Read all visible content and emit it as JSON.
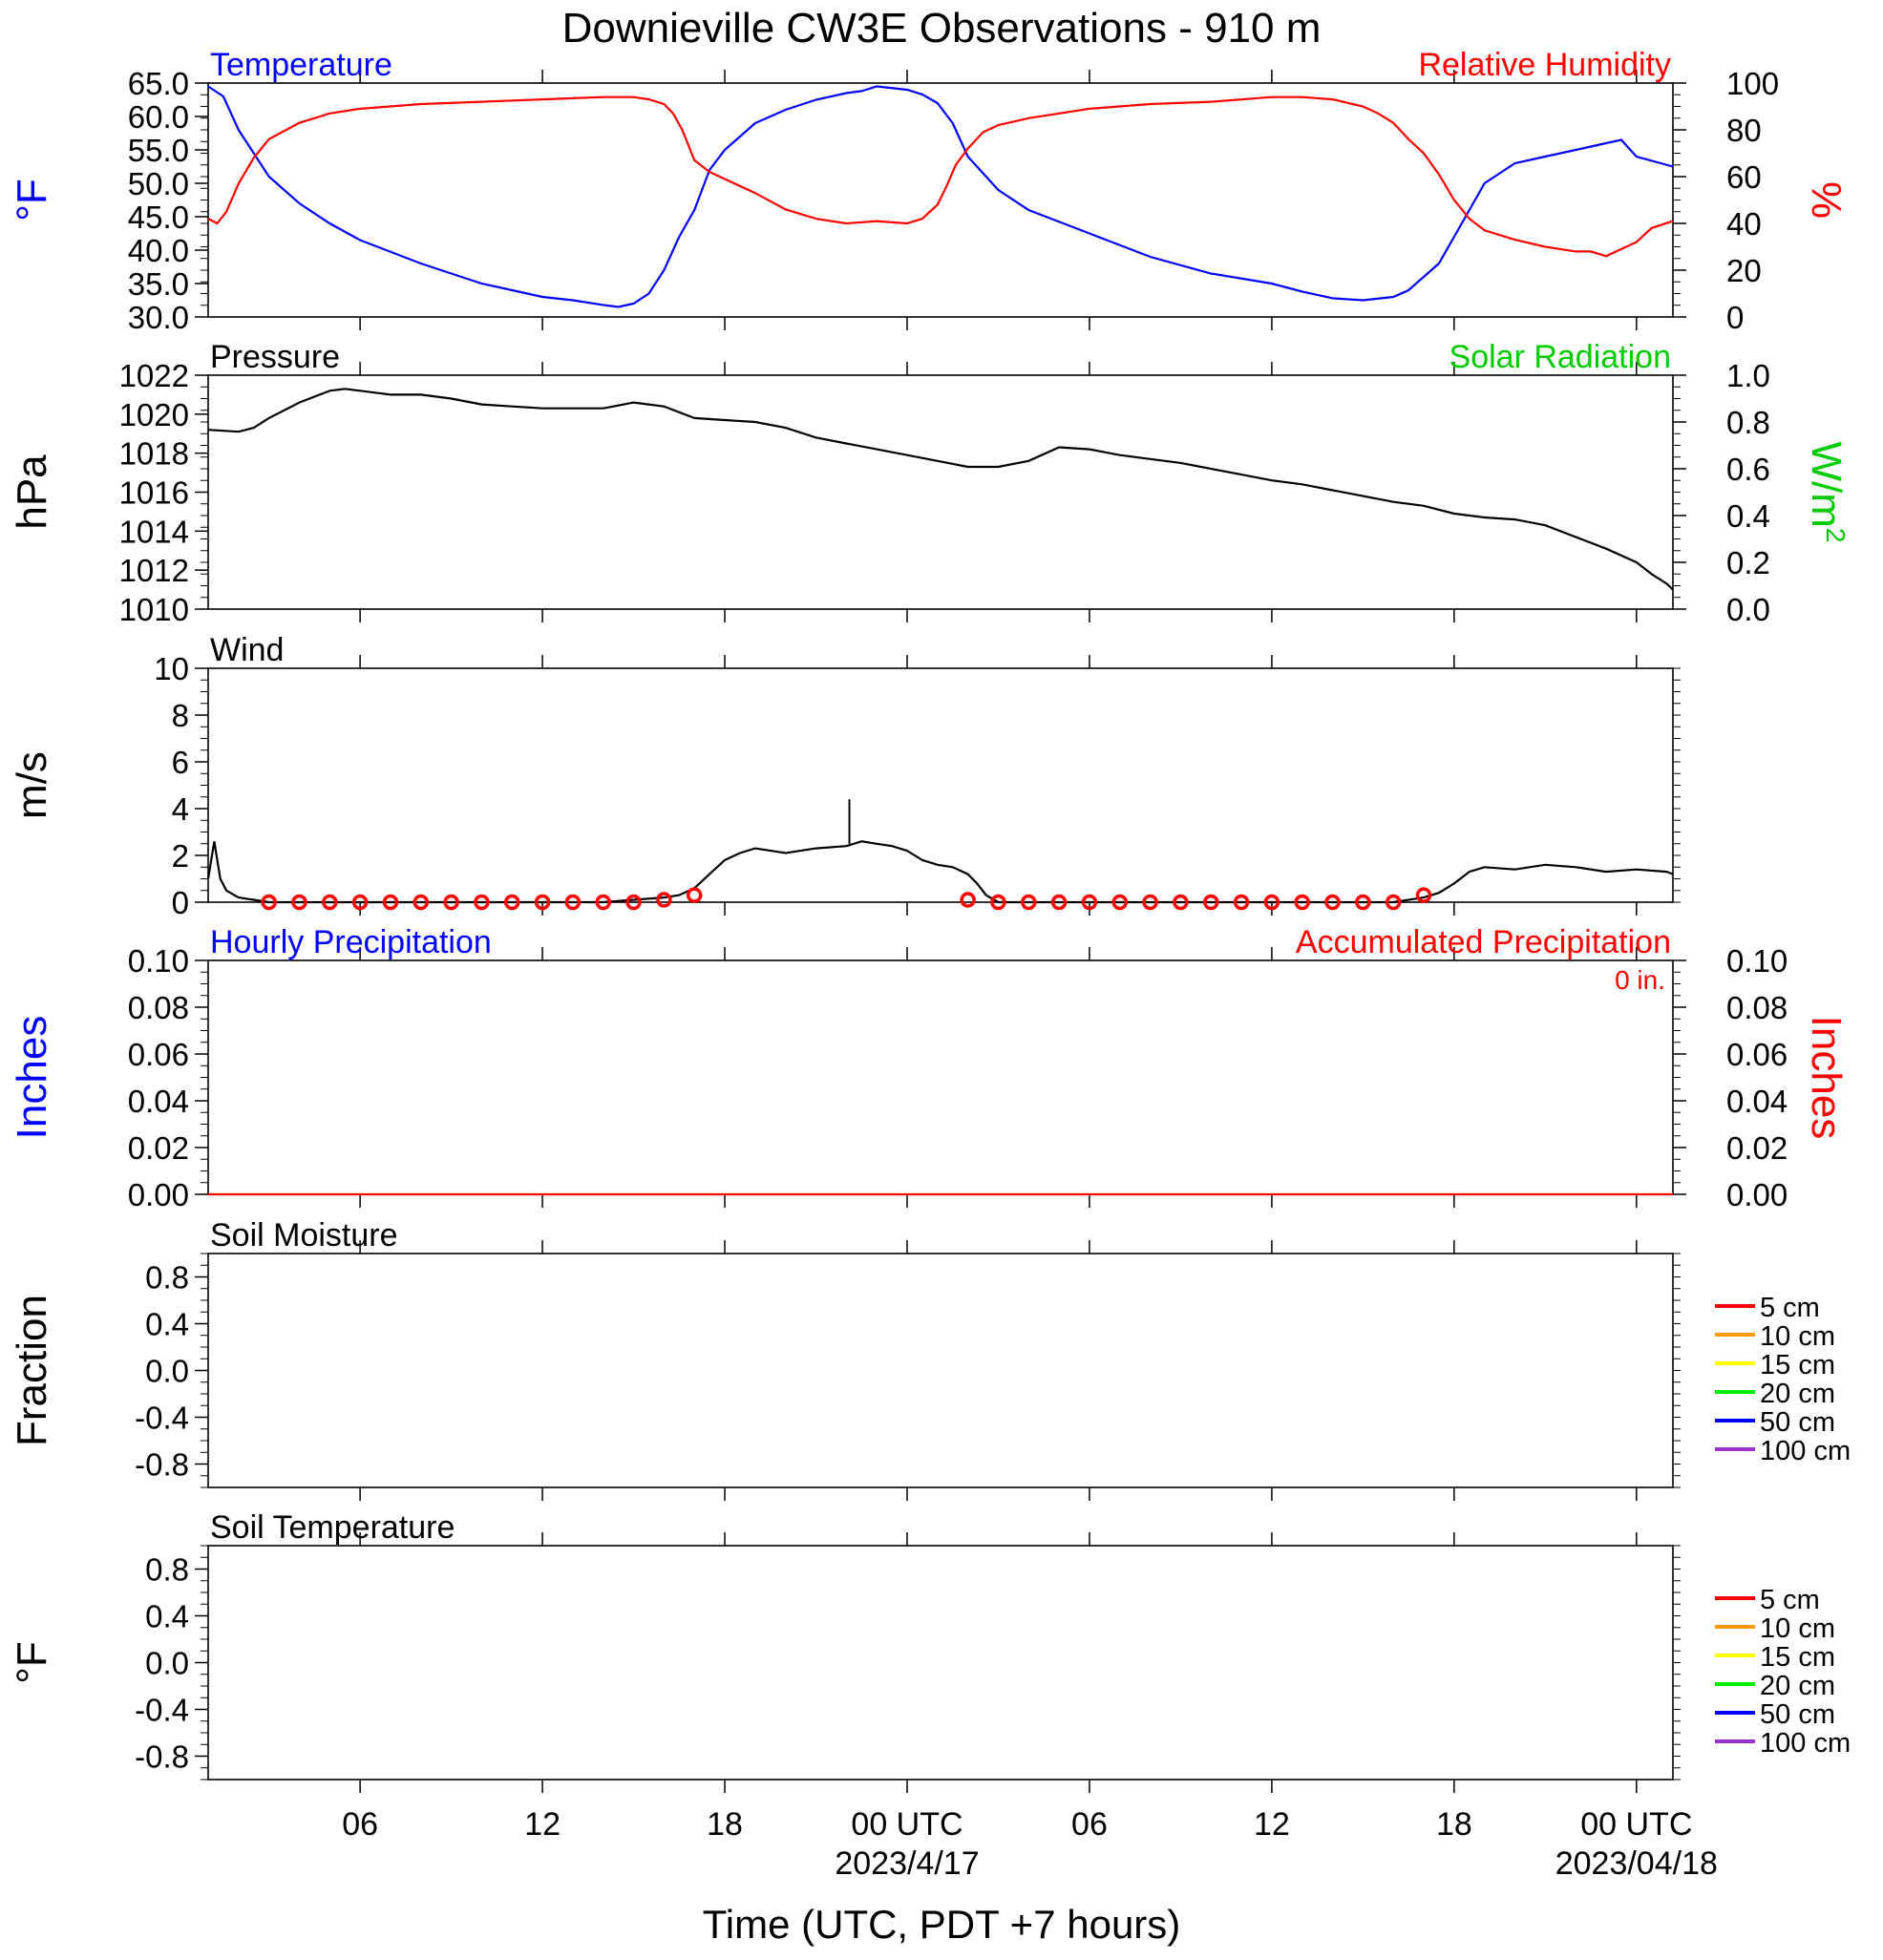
{
  "title": "Downieville CW3E Observations - 910 m",
  "xlabel": "Time (UTC, PDT +7 hours)",
  "x_ticks": [
    {
      "label": "06",
      "hour": 6
    },
    {
      "label": "12",
      "hour": 12
    },
    {
      "label": "18",
      "hour": 18
    },
    {
      "label": "00 UTC",
      "hour": 24,
      "date": "2023/4/17"
    },
    {
      "label": "06",
      "hour": 30
    },
    {
      "label": "12",
      "hour": 36
    },
    {
      "label": "18",
      "hour": 42
    },
    {
      "label": "00 UTC",
      "hour": 48,
      "date": "2023/04/18"
    }
  ],
  "x_range_hours": [
    1,
    49.2
  ],
  "colors": {
    "temperature": "#0000ff",
    "humidity": "#ff0000",
    "solar": "#00cc00",
    "black": "#000000"
  },
  "chart_data": [
    {
      "type": "line",
      "panel": "temperature-humidity",
      "title_left": "Temperature",
      "title_right": "Relative Humidity",
      "ylabel_left": "°F",
      "ylabel_right": "%",
      "ylim_left": [
        30,
        65
      ],
      "ylim_right": [
        0,
        100
      ],
      "yticks_left": [
        "30.0",
        "35.0",
        "40.0",
        "45.0",
        "50.0",
        "55.0",
        "60.0",
        "65.0"
      ],
      "yticks_right": [
        "0",
        "20",
        "40",
        "60",
        "80",
        "100"
      ],
      "series": [
        {
          "name": "Temperature",
          "axis": "left",
          "color": "#0000ff",
          "x": [
            1,
            1.5,
            2,
            3,
            4,
            5,
            6,
            8,
            10,
            12,
            13,
            14,
            14.5,
            15,
            15.5,
            16,
            16.5,
            17,
            17.5,
            18,
            18.5,
            19,
            20,
            21,
            22,
            22.5,
            23,
            24,
            24.5,
            25,
            25.5,
            26,
            27,
            28,
            30,
            32,
            34,
            36,
            37,
            38,
            39,
            40,
            40.5,
            41,
            41.5,
            42,
            42.5,
            43,
            44,
            45,
            46,
            46.5,
            47,
            47.5,
            48,
            49.2
          ],
          "y": [
            64.5,
            63,
            58,
            51,
            47,
            44,
            41.5,
            38,
            35,
            33,
            32.5,
            31.8,
            31.5,
            32,
            33.5,
            37,
            42,
            46,
            52,
            55,
            57,
            59,
            61,
            62.5,
            63.5,
            63.8,
            64.5,
            64,
            63.3,
            62,
            59,
            54,
            49,
            46,
            42.5,
            39,
            36.5,
            35,
            33.8,
            32.8,
            32.5,
            33,
            34,
            36,
            38,
            42,
            46,
            50,
            53,
            54,
            55,
            55.5,
            56,
            56.5,
            54,
            52.5
          ]
        },
        {
          "name": "Relative Humidity",
          "axis": "right",
          "color": "#ff0000",
          "x": [
            1,
            1.3,
            1.6,
            2,
            2.5,
            3,
            4,
            5,
            6,
            8,
            10,
            12,
            13,
            14,
            15,
            15.5,
            16,
            16.3,
            16.6,
            17,
            17.5,
            18,
            19,
            20,
            21,
            22,
            23,
            24,
            24.5,
            25,
            25.3,
            25.6,
            26,
            26.5,
            27,
            28,
            30,
            32,
            34,
            36,
            37,
            38,
            39,
            39.5,
            40,
            40.5,
            41,
            41.5,
            42,
            42.5,
            43,
            44,
            45,
            46,
            46.5,
            47,
            47.5,
            48,
            48.5,
            49.2
          ],
          "y": [
            42,
            40,
            45,
            57,
            68,
            76,
            83,
            87,
            89,
            91,
            92,
            93,
            93.5,
            94,
            94,
            93,
            91,
            87,
            80,
            67,
            62,
            59,
            53,
            46,
            42,
            40,
            41,
            40,
            42,
            48,
            56,
            65,
            72,
            79,
            82,
            85,
            89,
            91,
            92,
            94,
            94,
            93,
            90,
            87,
            83,
            76,
            70,
            61,
            50,
            42,
            37,
            33,
            30,
            28,
            28,
            26,
            29,
            32,
            38,
            41
          ]
        }
      ]
    },
    {
      "type": "line",
      "panel": "pressure-solar",
      "title_left": "Pressure",
      "title_right": "Solar Radiation",
      "ylabel_left": "hPa",
      "ylabel_right": "W/m",
      "ylabel_right_sup": "2",
      "ylim_left": [
        1010,
        1022
      ],
      "ylim_right": [
        0,
        1
      ],
      "yticks_left": [
        "1010",
        "1012",
        "1014",
        "1016",
        "1018",
        "1020",
        "1022"
      ],
      "yticks_right": [
        "0.0",
        "0.2",
        "0.4",
        "0.6",
        "0.8",
        "1.0"
      ],
      "series": [
        {
          "name": "Pressure",
          "axis": "left",
          "color": "#000000",
          "x": [
            1,
            2,
            2.5,
            3,
            4,
            5,
            5.5,
            6,
            7,
            8,
            9,
            10,
            11,
            12,
            13,
            14,
            15,
            16,
            17,
            18,
            19,
            20,
            21,
            22,
            23,
            24,
            25,
            26,
            27,
            28,
            29,
            30,
            31,
            32,
            33,
            34,
            35,
            36,
            37,
            38,
            39,
            40,
            41,
            42,
            43,
            44,
            45,
            46,
            47,
            48,
            48.5,
            49,
            49.2
          ],
          "y": [
            1019.2,
            1019.1,
            1019.3,
            1019.8,
            1020.6,
            1021.2,
            1021.3,
            1021.2,
            1021.0,
            1021.0,
            1020.8,
            1020.5,
            1020.4,
            1020.3,
            1020.3,
            1020.3,
            1020.6,
            1020.4,
            1019.8,
            1019.7,
            1019.6,
            1019.3,
            1018.8,
            1018.5,
            1018.2,
            1017.9,
            1017.6,
            1017.3,
            1017.3,
            1017.6,
            1018.3,
            1018.2,
            1017.9,
            1017.7,
            1017.5,
            1017.2,
            1016.9,
            1016.6,
            1016.4,
            1016.1,
            1015.8,
            1015.5,
            1015.3,
            1014.9,
            1014.7,
            1014.6,
            1014.3,
            1013.7,
            1013.1,
            1012.4,
            1011.8,
            1011.3,
            1011.0
          ]
        },
        {
          "name": "Solar Radiation",
          "axis": "right",
          "color": "#00cc00",
          "x": [],
          "y": []
        }
      ]
    },
    {
      "type": "line",
      "panel": "wind",
      "title_left": "Wind",
      "ylabel_left": "m/s",
      "ylim_left": [
        0,
        10
      ],
      "yticks_left": [
        "0",
        "2",
        "4",
        "6",
        "8",
        "10"
      ],
      "series": [
        {
          "name": "Wind",
          "axis": "left",
          "color": "#000000",
          "x": [
            1,
            1.2,
            1.4,
            1.6,
            2,
            3,
            14,
            15,
            16,
            16.5,
            17,
            17.5,
            18,
            18.5,
            19,
            20,
            21,
            22,
            22.5,
            23,
            23.5,
            24,
            24.5,
            25,
            25.5,
            26,
            26.3,
            26.6,
            27,
            28,
            40,
            41,
            41.5,
            42,
            42.5,
            43,
            44,
            45,
            46,
            47,
            48,
            49,
            49.2
          ],
          "y": [
            1.0,
            2.6,
            1.0,
            0.5,
            0.2,
            0,
            0,
            0.1,
            0.2,
            0.3,
            0.6,
            1.2,
            1.8,
            2.1,
            2.3,
            2.1,
            2.3,
            2.4,
            2.6,
            2.5,
            2.4,
            2.2,
            1.8,
            1.6,
            1.5,
            1.2,
            0.8,
            0.3,
            0,
            0,
            0,
            0.2,
            0.4,
            0.8,
            1.3,
            1.5,
            1.4,
            1.6,
            1.5,
            1.3,
            1.4,
            1.3,
            1.2
          ],
          "gust_peak": {
            "x": 22.1,
            "y": 4.4
          }
        },
        {
          "name": "Wind barbs",
          "axis": "left",
          "color": "#ff0000",
          "marker": "circle",
          "x": [
            3,
            4,
            5,
            6,
            7,
            8,
            9,
            10,
            11,
            12,
            13,
            14,
            15,
            16,
            17,
            26,
            27,
            28,
            29,
            30,
            31,
            32,
            33,
            34,
            35,
            36,
            37,
            38,
            39,
            40,
            41
          ],
          "y": [
            0,
            0,
            0,
            0,
            0,
            0,
            0,
            0,
            0,
            0,
            0,
            0,
            0,
            0.1,
            0.3,
            0.1,
            0,
            0,
            0,
            0,
            0,
            0,
            0,
            0,
            0,
            0,
            0,
            0,
            0,
            0,
            0.3
          ]
        }
      ]
    },
    {
      "type": "line",
      "panel": "precipitation",
      "title_left": "Hourly Precipitation",
      "title_right": "Accumulated Precipitation",
      "annotation": "0 in.",
      "ylabel_left": "Inches",
      "ylabel_right": "Inches",
      "ylim_left": [
        0,
        0.1
      ],
      "ylim_right": [
        0,
        0.1
      ],
      "yticks_left": [
        "0.00",
        "0.02",
        "0.04",
        "0.06",
        "0.08",
        "0.10"
      ],
      "yticks_right": [
        "0.00",
        "0.02",
        "0.04",
        "0.06",
        "0.08",
        "0.10"
      ],
      "series": [
        {
          "name": "Accumulated Precipitation",
          "axis": "right",
          "color": "#ff0000",
          "x": [
            1,
            49.2
          ],
          "y": [
            0,
            0
          ]
        }
      ]
    },
    {
      "type": "line",
      "panel": "soil-moisture",
      "title_left": "Soil Moisture",
      "ylabel_left": "Fraction",
      "ylim_left": [
        -1,
        1
      ],
      "yticks_left": [
        "-0.8",
        "-0.4",
        "0.0",
        "0.4",
        "0.8"
      ],
      "legend": [
        {
          "label": "5 cm",
          "color": "#ff0000"
        },
        {
          "label": "10 cm",
          "color": "#ff9900"
        },
        {
          "label": "15 cm",
          "color": "#ffff00"
        },
        {
          "label": "20 cm",
          "color": "#00ee00"
        },
        {
          "label": "50 cm",
          "color": "#0000ff"
        },
        {
          "label": "100 cm",
          "color": "#9933cc"
        }
      ],
      "series": []
    },
    {
      "type": "line",
      "panel": "soil-temperature",
      "title_left": "Soil Temperature",
      "ylabel_left": "°F",
      "ylim_left": [
        -1,
        1
      ],
      "yticks_left": [
        "-0.8",
        "-0.4",
        "0.0",
        "0.4",
        "0.8"
      ],
      "legend": [
        {
          "label": "5 cm",
          "color": "#ff0000"
        },
        {
          "label": "10 cm",
          "color": "#ff9900"
        },
        {
          "label": "15 cm",
          "color": "#ffff00"
        },
        {
          "label": "20 cm",
          "color": "#00ee00"
        },
        {
          "label": "50 cm",
          "color": "#0000ff"
        },
        {
          "label": "100 cm",
          "color": "#9933cc"
        }
      ],
      "series": []
    }
  ]
}
